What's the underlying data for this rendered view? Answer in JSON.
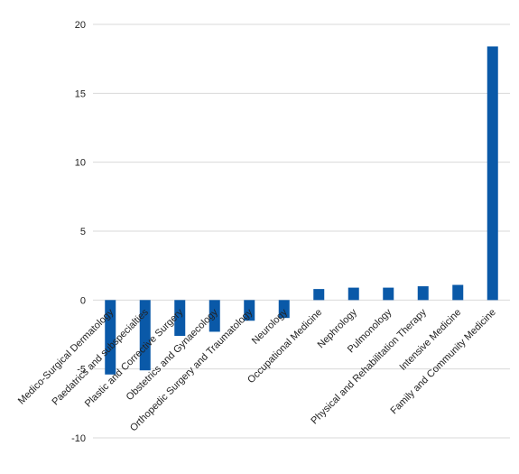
{
  "chart_data": {
    "type": "bar",
    "title": "",
    "xlabel": "",
    "ylabel": "",
    "ylim": [
      -10,
      20
    ],
    "yticks": [
      -10,
      -5,
      0,
      5,
      10,
      15,
      20
    ],
    "grid": true,
    "bar_color": "#0a59a8",
    "categories": [
      "Medico-Surgical Dermatology",
      "Paedatrics and subspecialties",
      "Plastic and Corrective Surgery",
      "Obstetrics and Gynaecology",
      "Orthopedic Surgery and Traumatology",
      "Neurology",
      "Occupational Medicine",
      "Nephrology",
      "Pulmonology",
      "Physical and Rehabilitation Therapy",
      "Intensive Medicine",
      "Family and Community Medicine"
    ],
    "values": [
      -5.4,
      -5.1,
      -2.6,
      -2.3,
      -1.5,
      -1.3,
      0.8,
      0.9,
      0.9,
      1.0,
      1.1,
      18.4
    ]
  }
}
